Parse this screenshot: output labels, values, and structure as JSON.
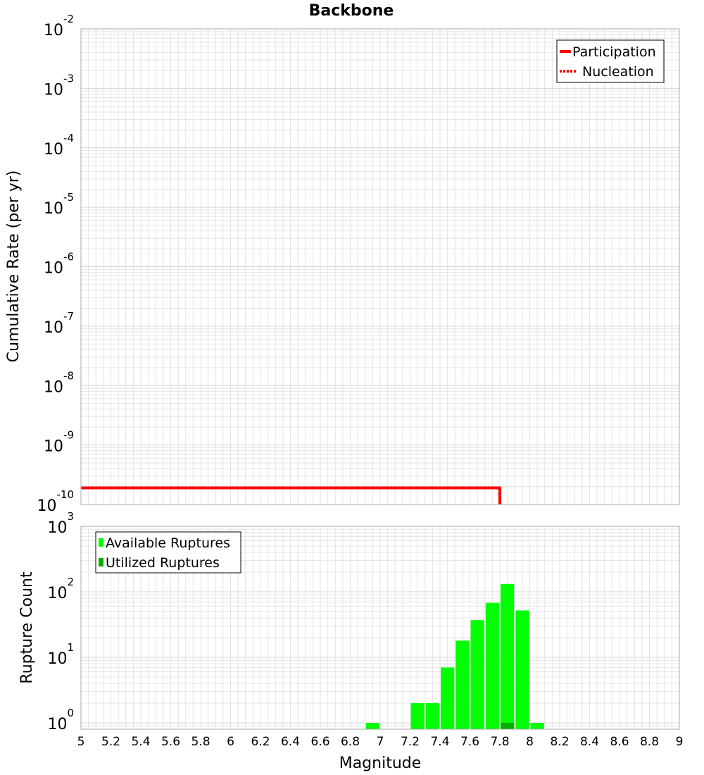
{
  "title": "Backbone",
  "colors": {
    "participation": "#ff0000",
    "available": "#00ff00",
    "utilized": "#00b000",
    "grid": "#e4e4e4",
    "frame": "#aaaaaa"
  },
  "chart_data": [
    {
      "type": "line",
      "ylabel": "Cumulative Rate (per yr)",
      "yscale": "log",
      "ylim": [
        1e-10,
        0.01
      ],
      "xlim": [
        5,
        9
      ],
      "y_tick_labels": [
        {
          "value": 0.01,
          "base": "10",
          "exp": "-2"
        },
        {
          "value": 0.001,
          "base": "10",
          "exp": "-3"
        },
        {
          "value": 0.0001,
          "base": "10",
          "exp": "-4"
        },
        {
          "value": 1e-05,
          "base": "10",
          "exp": "-5"
        },
        {
          "value": 1e-06,
          "base": "10",
          "exp": "-6"
        },
        {
          "value": 1e-07,
          "base": "10",
          "exp": "-7"
        },
        {
          "value": 1e-08,
          "base": "10",
          "exp": "-8"
        },
        {
          "value": 1e-09,
          "base": "10",
          "exp": "-9"
        },
        {
          "value": 1e-10,
          "base": "10",
          "exp": "-10"
        }
      ],
      "legend": {
        "position": "top-right",
        "items": [
          {
            "label": "Participation",
            "style": "solid"
          },
          {
            "label": "Nucleation",
            "style": "dotted"
          }
        ]
      },
      "series": [
        {
          "name": "Participation",
          "style": "solid",
          "x": [
            5.0,
            7.8,
            7.8
          ],
          "y": [
            1.9e-10,
            1.9e-10,
            1e-10
          ]
        },
        {
          "name": "Nucleation",
          "style": "dotted",
          "x": [],
          "y": []
        }
      ]
    },
    {
      "type": "bar",
      "ylabel": "Rupture Count",
      "xlabel": "Magnitude",
      "yscale": "log",
      "ylim": [
        0.8,
        1000
      ],
      "xlim": [
        5,
        9
      ],
      "bar_width": 0.1,
      "y_tick_labels": [
        {
          "value": 1,
          "base": "10",
          "exp": "0"
        },
        {
          "value": 10,
          "base": "10",
          "exp": "1"
        },
        {
          "value": 100,
          "base": "10",
          "exp": "2"
        },
        {
          "value": 1000,
          "base": "10",
          "exp": "3"
        }
      ],
      "x_tick_labels": [
        "5",
        "5.2",
        "5.4",
        "5.6",
        "5.8",
        "6",
        "6.2",
        "6.4",
        "6.6",
        "6.8",
        "7",
        "7.2",
        "7.4",
        "7.6",
        "7.8",
        "8",
        "8.2",
        "8.4",
        "8.6",
        "8.8",
        "9"
      ],
      "legend": {
        "position": "top-left",
        "items": [
          {
            "label": "Available Ruptures"
          },
          {
            "label": "Utilized Ruptures"
          }
        ]
      },
      "series": [
        {
          "name": "Available Ruptures",
          "x": [
            6.95,
            7.25,
            7.35,
            7.45,
            7.55,
            7.65,
            7.75,
            7.85,
            7.95,
            8.05
          ],
          "values": [
            1,
            2,
            2,
            7,
            18,
            37,
            68,
            132,
            52,
            1
          ]
        },
        {
          "name": "Utilized Ruptures",
          "x": [
            7.85
          ],
          "values": [
            1
          ]
        }
      ]
    }
  ]
}
